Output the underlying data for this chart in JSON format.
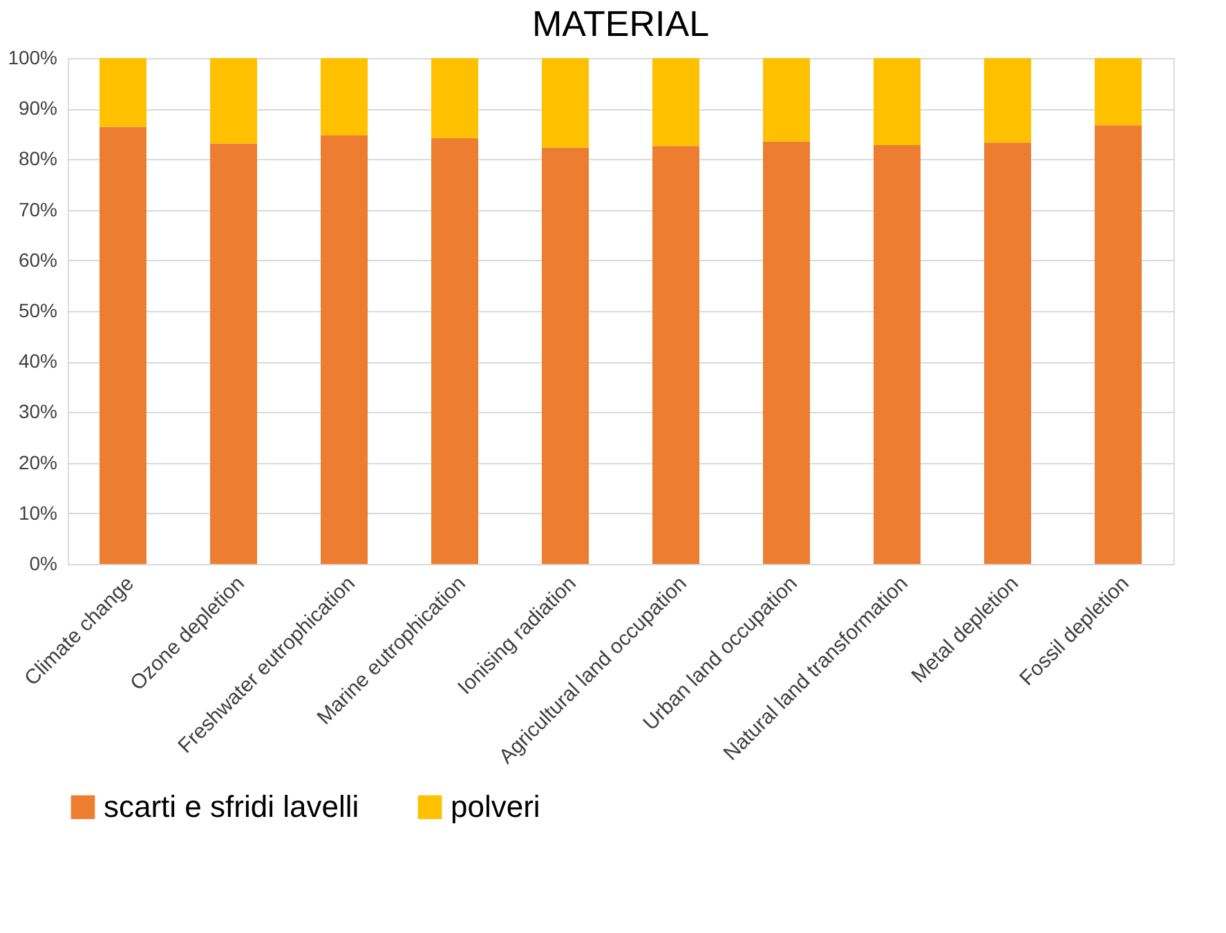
{
  "chart_data": {
    "type": "bar",
    "title": "MATERIAL",
    "stacked": true,
    "categories": [
      "Climate change",
      "Ozone depletion",
      "Freshwater eutrophication",
      "Marine eutrophication",
      "Ionising radiation",
      "Agricultural land occupation",
      "Urban land occupation",
      "Natural land transformation",
      "Metal depletion",
      "Fossil depletion"
    ],
    "series": [
      {
        "name": "scarti e sfridi lavelli",
        "color": "#ed7d31",
        "values": [
          86.4,
          83.1,
          84.7,
          84.2,
          82.3,
          82.6,
          83.5,
          82.8,
          83.3,
          86.7
        ]
      },
      {
        "name": "polveri",
        "color": "#ffc000",
        "values": [
          13.6,
          16.9,
          15.3,
          15.8,
          17.7,
          17.4,
          16.5,
          17.2,
          16.7,
          13.3
        ]
      }
    ],
    "ylim": [
      0,
      100
    ],
    "yticks": [
      {
        "value": 0,
        "label": "0%"
      },
      {
        "value": 10,
        "label": "10%"
      },
      {
        "value": 20,
        "label": "20%"
      },
      {
        "value": 30,
        "label": "30%"
      },
      {
        "value": 40,
        "label": "40%"
      },
      {
        "value": 50,
        "label": "50%"
      },
      {
        "value": 60,
        "label": "60%"
      },
      {
        "value": 70,
        "label": "70%"
      },
      {
        "value": 80,
        "label": "80%"
      },
      {
        "value": 90,
        "label": "90%"
      },
      {
        "value": 100,
        "label": "100%"
      }
    ],
    "grid": "y",
    "legend": "bottom"
  }
}
